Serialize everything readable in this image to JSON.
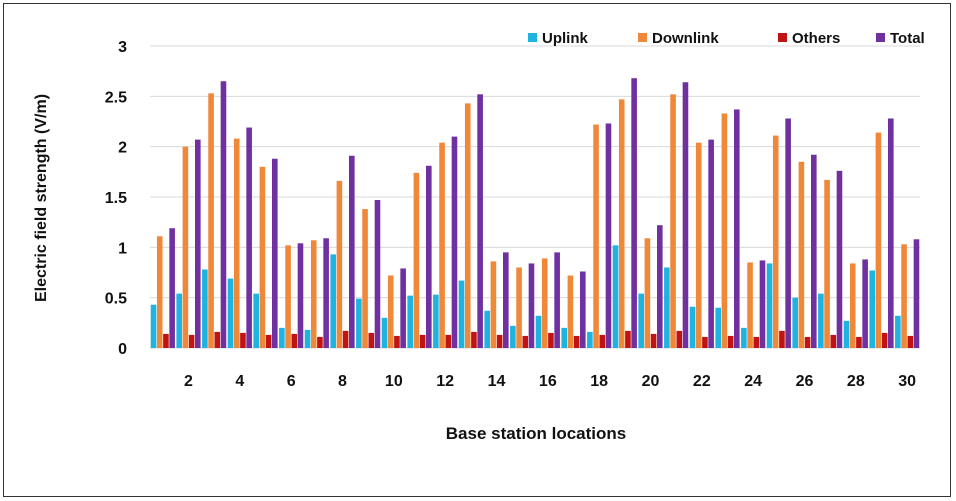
{
  "chart_data": {
    "type": "bar",
    "title": "",
    "xlabel": "Base station locations",
    "ylabel": "Electric field strength (V/m)",
    "ylim": [
      0,
      3
    ],
    "yticks": [
      "0",
      "0.5",
      "1",
      "1.5",
      "2",
      "2.5",
      "3"
    ],
    "categories": [
      "1",
      "2",
      "3",
      "4",
      "5",
      "6",
      "7",
      "8",
      "9",
      "10",
      "11",
      "12",
      "13",
      "14",
      "15",
      "16",
      "17",
      "18",
      "19",
      "20",
      "21",
      "22",
      "23",
      "24",
      "25",
      "26",
      "27",
      "28",
      "29",
      "30"
    ],
    "xtick_labels": [
      "2",
      "4",
      "6",
      "8",
      "10",
      "12",
      "14",
      "16",
      "18",
      "20",
      "22",
      "24",
      "26",
      "28",
      "30"
    ],
    "grid": true,
    "legend_position": "top-right",
    "series": [
      {
        "name": "Uplink",
        "color": "#1fb3e0",
        "values": [
          0.43,
          0.54,
          0.78,
          0.69,
          0.54,
          0.2,
          0.18,
          0.93,
          0.49,
          0.3,
          0.52,
          0.53,
          0.67,
          0.37,
          0.22,
          0.32,
          0.2,
          0.16,
          1.02,
          0.54,
          0.8,
          0.41,
          0.4,
          0.2,
          0.84,
          0.5,
          0.54,
          0.27,
          0.77,
          0.32
        ]
      },
      {
        "name": "Downlink",
        "color": "#f0883a",
        "values": [
          1.11,
          2.0,
          2.53,
          2.08,
          1.8,
          1.02,
          1.07,
          1.66,
          1.38,
          0.72,
          1.74,
          2.04,
          2.43,
          0.86,
          0.8,
          0.89,
          0.72,
          2.22,
          2.47,
          1.09,
          2.52,
          2.04,
          2.33,
          0.85,
          2.11,
          1.85,
          1.67,
          0.84,
          2.14,
          1.03
        ]
      },
      {
        "name": "Others",
        "color": "#c01414",
        "values": [
          0.14,
          0.13,
          0.16,
          0.15,
          0.13,
          0.14,
          0.11,
          0.17,
          0.15,
          0.12,
          0.13,
          0.13,
          0.16,
          0.13,
          0.12,
          0.15,
          0.12,
          0.13,
          0.17,
          0.14,
          0.17,
          0.11,
          0.12,
          0.11,
          0.17,
          0.11,
          0.13,
          0.11,
          0.15,
          0.12
        ]
      },
      {
        "name": "Total",
        "color": "#7030a0",
        "values": [
          1.19,
          2.07,
          2.65,
          2.19,
          1.88,
          1.04,
          1.09,
          1.91,
          1.47,
          0.79,
          1.81,
          2.1,
          2.52,
          0.95,
          0.84,
          0.95,
          0.76,
          2.23,
          2.68,
          1.22,
          2.64,
          2.07,
          2.37,
          0.87,
          2.28,
          1.92,
          1.76,
          0.88,
          2.28,
          1.08
        ]
      }
    ]
  }
}
